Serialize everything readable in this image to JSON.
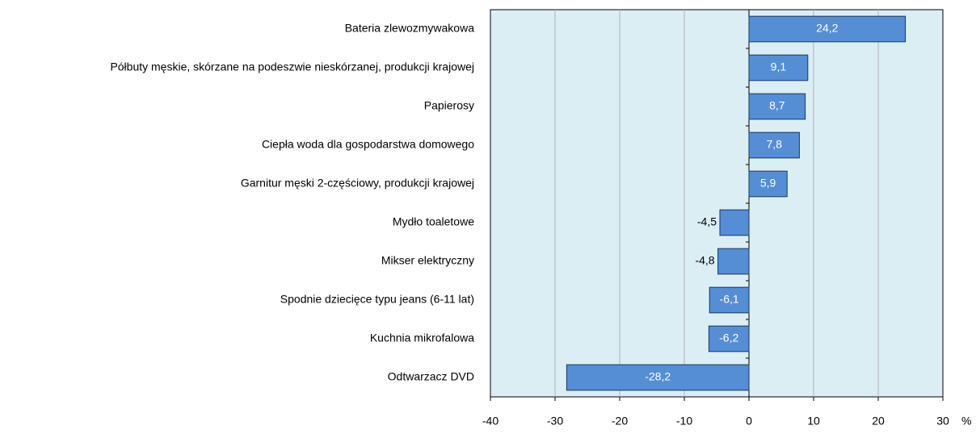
{
  "chart_data": {
    "type": "bar",
    "orientation": "horizontal",
    "categories": [
      "Bateria zlewozmywakowa",
      "Półbuty męskie, skórzane na podeszwie nieskórzanej, produkcji krajowej",
      "Papierosy",
      "Ciepła woda dla gospodarstwa domowego",
      "Garnitur męski 2-częściowy, produkcji krajowej",
      "Mydło toaletowe",
      "Mikser elektryczny",
      "Spodnie dziecięce typu jeans (6-11 lat)",
      "Kuchnia mikrofalowa",
      "Odtwarzacz DVD"
    ],
    "values": [
      24.2,
      9.1,
      8.7,
      7.8,
      5.9,
      -4.5,
      -4.8,
      -6.1,
      -6.2,
      -28.2
    ],
    "value_labels": [
      "24,2",
      "9,1",
      "8,7",
      "7,8",
      "5,9",
      "-4,5",
      "-4,8",
      "-6,1",
      "-6,2",
      "-28,2"
    ],
    "color": "#558ed5",
    "x_label": "%",
    "xlim": [
      -40,
      30
    ],
    "xticks": [
      -40,
      -30,
      -20,
      -10,
      0,
      10,
      20,
      30
    ],
    "grid": true
  }
}
